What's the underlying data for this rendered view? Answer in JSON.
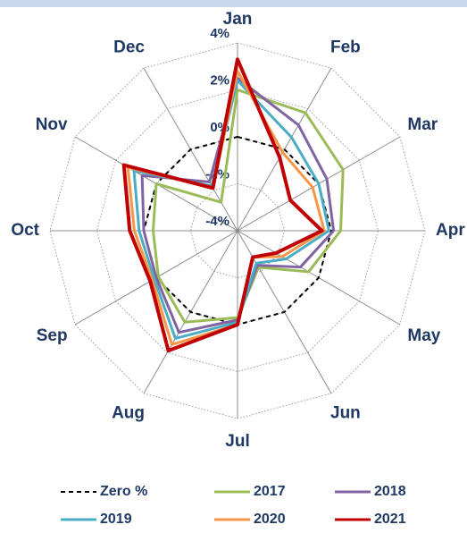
{
  "chart_data": {
    "type": "radar",
    "categories": [
      "Jan",
      "Feb",
      "Mar",
      "Apr",
      "May",
      "Jun",
      "Jul",
      "Aug",
      "Sep",
      "Oct",
      "Nov",
      "Dec"
    ],
    "series": [
      {
        "name": "Zero %",
        "color": "#000000",
        "dash": true,
        "values": [
          0,
          0,
          0,
          0,
          0,
          0,
          0,
          0,
          0,
          0,
          0,
          0
        ]
      },
      {
        "name": "2017",
        "color": "#9bbb59",
        "values": [
          2.0,
          1.8,
          1.2,
          0.4,
          -0.5,
          -2.2,
          -0.3,
          0.5,
          -0.1,
          -0.4,
          0.0,
          -2.6
        ]
      },
      {
        "name": "2018",
        "color": "#8064a2",
        "values": [
          2.5,
          1.2,
          0.4,
          0.1,
          -0.9,
          -2.3,
          -0.2,
          1.0,
          0.0,
          0.0,
          0.7,
          -1.6
        ]
      },
      {
        "name": "2019",
        "color": "#4bacc6",
        "values": [
          2.4,
          0.6,
          0.0,
          -0.1,
          -1.6,
          -2.4,
          -0.1,
          1.3,
          0.1,
          0.2,
          1.1,
          -1.8
        ]
      },
      {
        "name": "2020",
        "color": "#f79646",
        "values": [
          2.8,
          -0.15,
          -0.3,
          -0.3,
          -1.8,
          -2.7,
          0.0,
          1.6,
          0.2,
          0.4,
          1.4,
          -1.9
        ]
      },
      {
        "name": "2021",
        "color": "#c00000",
        "values": [
          3.3,
          -0.4,
          -1.4,
          -0.4,
          -2.1,
          -2.7,
          0.0,
          1.9,
          0.3,
          0.6,
          1.6,
          -1.9
        ]
      }
    ],
    "rlim": [
      -4,
      4
    ],
    "rticks": [
      {
        "value": -4,
        "label": "-4%"
      },
      {
        "value": -2,
        "label": "-2%"
      },
      {
        "value": 0,
        "label": "0%"
      },
      {
        "value": 2,
        "label": "2%"
      },
      {
        "value": 4,
        "label": "4%"
      }
    ],
    "grid": true
  }
}
